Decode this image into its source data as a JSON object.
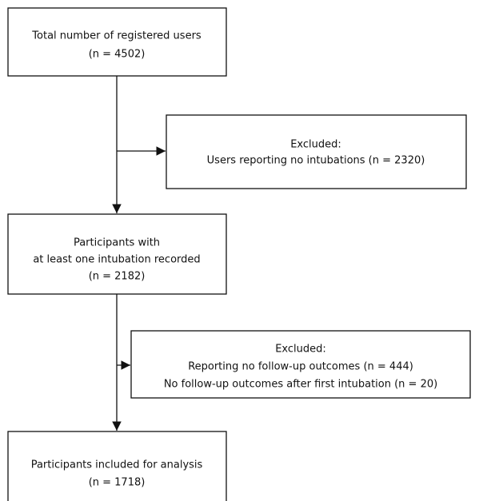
{
  "nodes": [
    {
      "lines": [
        "Total number of registered users",
        "(n = 4502)"
      ]
    },
    {
      "lines": [
        "Excluded:",
        "Users reporting no intubations (n = 2320)"
      ]
    },
    {
      "lines": [
        "Participants with",
        "at least one intubation recorded",
        "(n = 2182)"
      ]
    },
    {
      "lines": [
        "Excluded:",
        "Reporting no follow-up outcomes (n = 444)",
        "No follow-up outcomes after first intubation (n = 20)"
      ]
    },
    {
      "lines": [
        "Participants included for analysis",
        "(n = 1718)"
      ]
    }
  ]
}
